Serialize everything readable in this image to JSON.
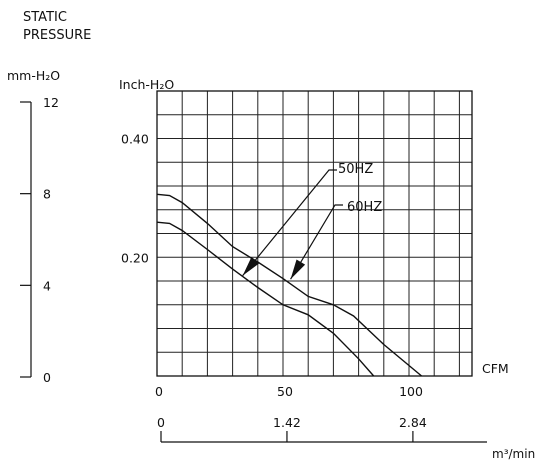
{
  "chart_data": {
    "type": "line",
    "title_lines": [
      "STATIC",
      "PRESSURE"
    ],
    "y_label": "Inch-H₂O",
    "y_ticks": [
      {
        "value": 0.2,
        "label": "0.20"
      },
      {
        "value": 0.4,
        "label": "0.40"
      }
    ],
    "ylim": [
      0,
      0.48
    ],
    "x_label": "CFM",
    "x_ticks": [
      {
        "value": 0,
        "label": "0"
      },
      {
        "value": 50,
        "label": "50"
      },
      {
        "value": 100,
        "label": "100"
      }
    ],
    "xlim": [
      0,
      125
    ],
    "grid": true,
    "grid_x_step": 10,
    "grid_y_step": 0.04,
    "y2_label": "mm-H₂O",
    "y2_ticks": [
      {
        "value": 0,
        "label": "0"
      },
      {
        "value": 4,
        "label": "4"
      },
      {
        "value": 8,
        "label": "8"
      },
      {
        "value": 12,
        "label": "12"
      }
    ],
    "y2lim": [
      0,
      12
    ],
    "x2_label": "m³/min",
    "x2_ticks": [
      {
        "value": 0,
        "label": "0"
      },
      {
        "value": 1.42,
        "label": "1.42"
      },
      {
        "value": 2.84,
        "label": "2.84"
      }
    ],
    "x2lim": [
      0,
      3.54
    ],
    "series": [
      {
        "name": "50HZ",
        "points": [
          [
            0,
            0.259
          ],
          [
            5,
            0.257
          ],
          [
            10,
            0.245
          ],
          [
            20,
            0.213
          ],
          [
            30,
            0.18
          ],
          [
            40,
            0.149
          ],
          [
            50,
            0.12
          ],
          [
            60,
            0.103
          ],
          [
            70,
            0.072
          ],
          [
            80,
            0.029
          ],
          [
            86,
            0
          ]
        ],
        "annotation_label": "50HZ",
        "arrow_tip": [
          34,
          0.169
        ]
      },
      {
        "name": "60HZ",
        "points": [
          [
            0,
            0.306
          ],
          [
            5,
            0.304
          ],
          [
            10,
            0.292
          ],
          [
            20,
            0.257
          ],
          [
            30,
            0.218
          ],
          [
            40,
            0.192
          ],
          [
            50,
            0.164
          ],
          [
            60,
            0.134
          ],
          [
            70,
            0.12
          ],
          [
            78,
            0.101
          ],
          [
            90,
            0.053
          ],
          [
            105,
            0
          ]
        ],
        "annotation_label": "60HZ",
        "arrow_tip": [
          53,
          0.163
        ]
      }
    ],
    "colors": {
      "line": "#111111",
      "grid": "#222222",
      "background": "#ffffff"
    }
  }
}
